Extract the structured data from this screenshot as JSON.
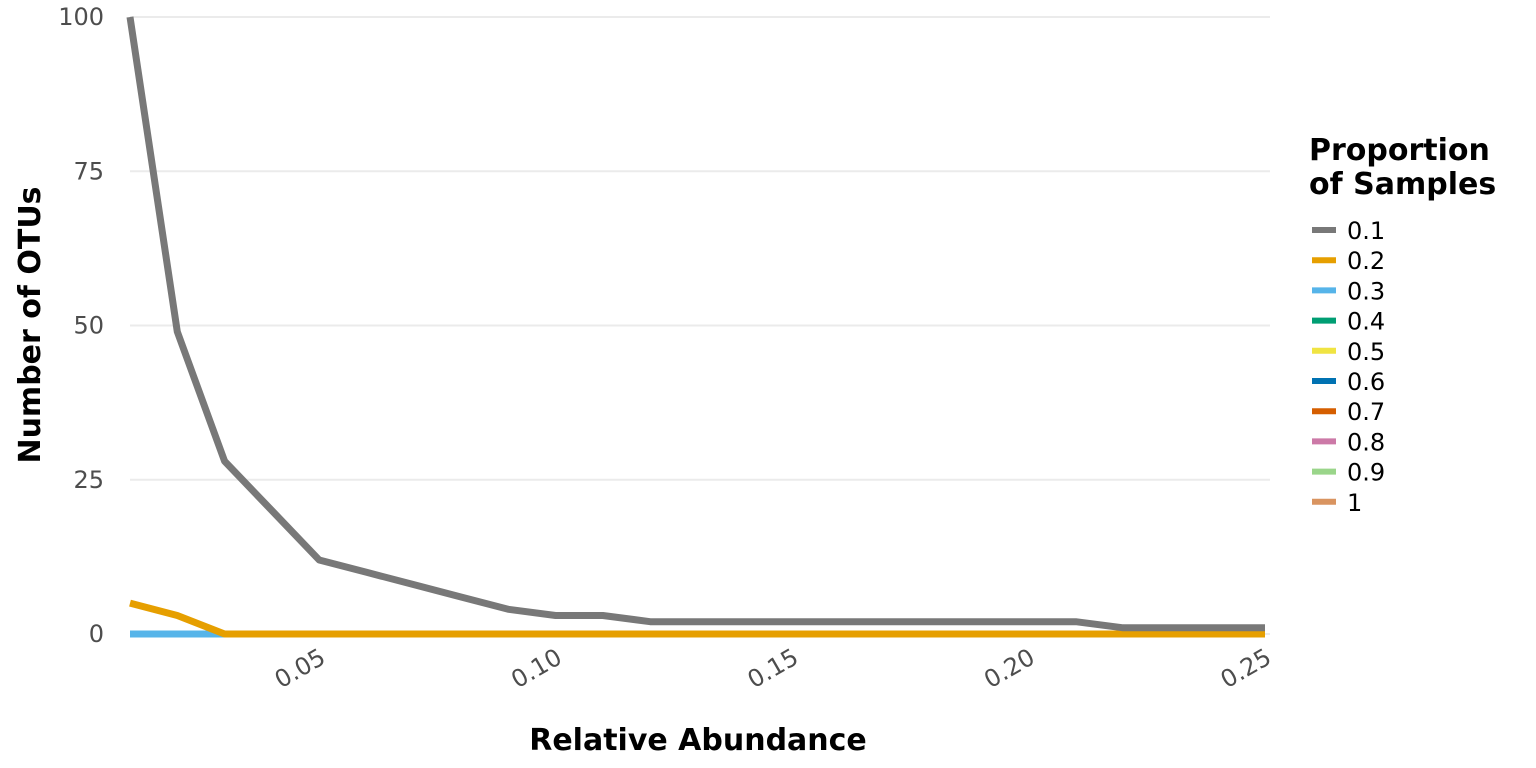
{
  "chart_data": {
    "type": "line",
    "xlabel": "Relative Abundance",
    "ylabel": "Number of OTUs",
    "xlim": [
      0.01,
      0.25
    ],
    "ylim": [
      0,
      100
    ],
    "x_ticks": [
      0.05,
      0.1,
      0.15,
      0.2,
      0.25
    ],
    "x_tick_labels": [
      "0.05",
      "0.10",
      "0.15",
      "0.20",
      "0.25"
    ],
    "y_ticks": [
      0,
      25,
      50,
      75,
      100
    ],
    "y_tick_labels": [
      "0",
      "25",
      "50",
      "75",
      "100"
    ],
    "grid": "horizontal",
    "legend": {
      "title_lines": [
        "Proportion",
        "of Samples"
      ],
      "placement": "right"
    },
    "x": [
      0.01,
      0.02,
      0.03,
      0.04,
      0.05,
      0.06,
      0.07,
      0.08,
      0.09,
      0.1,
      0.11,
      0.12,
      0.13,
      0.14,
      0.15,
      0.16,
      0.17,
      0.18,
      0.19,
      0.2,
      0.21,
      0.22,
      0.23,
      0.24,
      0.25
    ],
    "series": [
      {
        "name": "0.1",
        "color": "#787878",
        "values": [
          100,
          49,
          28,
          20,
          12,
          10,
          8,
          6,
          4,
          3,
          3,
          2,
          2,
          2,
          2,
          2,
          2,
          2,
          2,
          2,
          2,
          1,
          1,
          1,
          1
        ]
      },
      {
        "name": "0.2",
        "color": "#E69F00",
        "values": [
          5,
          3,
          0,
          0,
          0,
          0,
          0,
          0,
          0,
          0,
          0,
          0,
          0,
          0,
          0,
          0,
          0,
          0,
          0,
          0,
          0,
          0,
          0,
          0,
          0
        ]
      },
      {
        "name": "0.3",
        "color": "#56B4E9",
        "values": [
          0,
          0,
          0,
          0,
          0,
          0,
          0,
          0,
          0,
          0,
          0,
          0,
          0,
          0,
          0,
          0,
          0,
          0,
          0,
          0,
          0,
          0,
          0,
          0,
          0
        ]
      },
      {
        "name": "0.4",
        "color": "#009E73",
        "values": [
          0,
          0,
          0,
          0,
          0,
          0,
          0,
          0,
          0,
          0,
          0,
          0,
          0,
          0,
          0,
          0,
          0,
          0,
          0,
          0,
          0,
          0,
          0,
          0,
          0
        ]
      },
      {
        "name": "0.5",
        "color": "#F0E442",
        "values": [
          0,
          0,
          0,
          0,
          0,
          0,
          0,
          0,
          0,
          0,
          0,
          0,
          0,
          0,
          0,
          0,
          0,
          0,
          0,
          0,
          0,
          0,
          0,
          0,
          0
        ]
      },
      {
        "name": "0.6",
        "color": "#0072B2",
        "values": [
          0,
          0,
          0,
          0,
          0,
          0,
          0,
          0,
          0,
          0,
          0,
          0,
          0,
          0,
          0,
          0,
          0,
          0,
          0,
          0,
          0,
          0,
          0,
          0,
          0
        ]
      },
      {
        "name": "0.7",
        "color": "#D55E00",
        "values": [
          0,
          0,
          0,
          0,
          0,
          0,
          0,
          0,
          0,
          0,
          0,
          0,
          0,
          0,
          0,
          0,
          0,
          0,
          0,
          0,
          0,
          0,
          0,
          0,
          0
        ]
      },
      {
        "name": "0.8",
        "color": "#CC79A7",
        "values": [
          0,
          0,
          0,
          0,
          0,
          0,
          0,
          0,
          0,
          0,
          0,
          0,
          0,
          0,
          0,
          0,
          0,
          0,
          0,
          0,
          0,
          0,
          0,
          0,
          0
        ]
      },
      {
        "name": "0.9",
        "color": "#9AD58A",
        "values": [
          0,
          0,
          0,
          0,
          0,
          0,
          0,
          0,
          0,
          0,
          0,
          0,
          0,
          0,
          0,
          0,
          0,
          0,
          0,
          0,
          0,
          0,
          0,
          0,
          0
        ]
      },
      {
        "name": "1",
        "color": "#D99460",
        "values": [
          0,
          0,
          0,
          0,
          0,
          0,
          0,
          0,
          0,
          0,
          0,
          0,
          0,
          0,
          0,
          0,
          0,
          0,
          0,
          0,
          0,
          0,
          0,
          0,
          0
        ]
      }
    ]
  }
}
